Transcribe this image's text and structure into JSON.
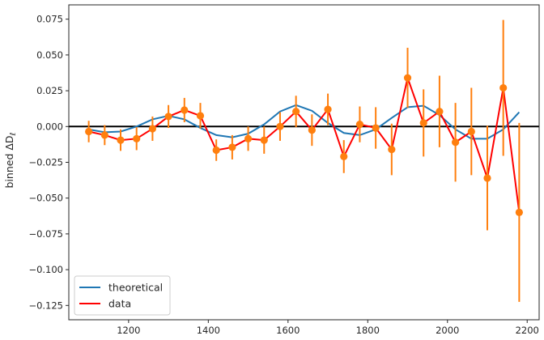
{
  "chart_data": {
    "type": "line",
    "title": "",
    "xlabel": "",
    "ylabel": "binned ΔD",
    "ylabel_subscript": "ℓ",
    "xlim": [
      1050,
      2230
    ],
    "ylim": [
      -0.135,
      0.085
    ],
    "xticks": [
      1200,
      1400,
      1600,
      1800,
      2000,
      2200
    ],
    "yticks": [
      -0.125,
      -0.1,
      -0.075,
      -0.05,
      -0.025,
      0.0,
      0.025,
      0.05,
      0.075
    ],
    "ytick_labels": [
      "−0.125",
      "−0.100",
      "−0.075",
      "−0.050",
      "−0.025",
      "0.000",
      "0.025",
      "0.050",
      "0.075"
    ],
    "xtick_labels": [
      "1200",
      "1400",
      "1600",
      "1800",
      "2000",
      "2200"
    ],
    "zero_line": true,
    "grid": false,
    "legend_position": "bottom-left",
    "series": [
      {
        "name": "theoretical",
        "color": "#1f77b4",
        "x": [
          1100,
          1140,
          1180,
          1220,
          1260,
          1300,
          1340,
          1380,
          1420,
          1460,
          1500,
          1540,
          1580,
          1620,
          1660,
          1700,
          1740,
          1780,
          1820,
          1860,
          1900,
          1940,
          1980,
          2020,
          2060,
          2100,
          2140,
          2180
        ],
        "y": [
          -0.002,
          -0.004,
          -0.0035,
          0.0,
          0.005,
          0.0075,
          0.005,
          -0.001,
          -0.006,
          -0.0075,
          -0.005,
          0.0015,
          0.0105,
          0.015,
          0.011,
          0.0025,
          -0.0045,
          -0.006,
          -0.002,
          0.006,
          0.0135,
          0.0145,
          0.008,
          -0.002,
          -0.0085,
          -0.0085,
          -0.002,
          0.01
        ]
      },
      {
        "name": "data",
        "color": "#ff0000",
        "marker_color": "#ff7f0e",
        "x": [
          1100,
          1140,
          1180,
          1220,
          1260,
          1300,
          1340,
          1380,
          1420,
          1460,
          1500,
          1540,
          1580,
          1620,
          1660,
          1700,
          1740,
          1780,
          1820,
          1860,
          1900,
          1940,
          1980,
          2020,
          2060,
          2100,
          2140,
          2180
        ],
        "y": [
          -0.0035,
          -0.006,
          -0.0095,
          -0.0085,
          -0.0015,
          0.007,
          0.0115,
          0.0075,
          -0.0165,
          -0.0145,
          -0.0085,
          -0.0095,
          0.0,
          0.0105,
          -0.0025,
          0.012,
          -0.021,
          0.0015,
          -0.001,
          -0.016,
          0.034,
          0.0025,
          0.0105,
          -0.011,
          -0.0035,
          -0.036,
          0.027,
          -0.06
        ],
        "err": [
          0.0075,
          0.007,
          0.0075,
          0.008,
          0.0085,
          0.008,
          0.0085,
          0.009,
          0.0075,
          0.0085,
          0.0085,
          0.0095,
          0.01,
          0.011,
          0.011,
          0.011,
          0.0115,
          0.0125,
          0.0145,
          0.018,
          0.021,
          0.0235,
          0.025,
          0.0275,
          0.0305,
          0.0365,
          0.0475,
          0.0625
        ]
      }
    ]
  }
}
